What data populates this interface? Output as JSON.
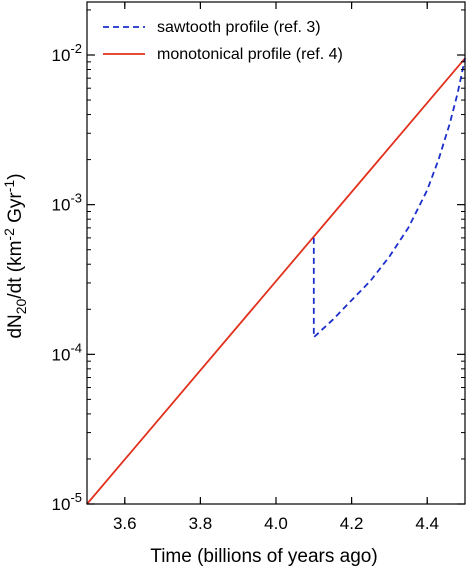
{
  "chart_data": {
    "type": "line",
    "title": "",
    "xlabel": "Time (billions of years ago)",
    "ylabel_parts": {
      "main": "dN",
      "sub": "20",
      "after_sub": "/dt (km",
      "sup1": "-2",
      "mid": " Gyr",
      "sup2": "-1",
      "end": ")"
    },
    "xlim": [
      3.5,
      4.5
    ],
    "ylim": [
      1e-05,
      0.01
    ],
    "yscale": "log",
    "grid": false,
    "legend_position": "top-left",
    "x_ticks": [
      {
        "value": 3.6,
        "label": "3.6"
      },
      {
        "value": 3.8,
        "label": "3.8"
      },
      {
        "value": 4.0,
        "label": "4.0"
      },
      {
        "value": 4.2,
        "label": "4.2"
      },
      {
        "value": 4.4,
        "label": "4.4"
      }
    ],
    "y_ticks": [
      {
        "value": 1e-05,
        "base": "10",
        "exp": "-5"
      },
      {
        "value": 0.0001,
        "base": "10",
        "exp": "-4"
      },
      {
        "value": 0.001,
        "base": "10",
        "exp": "-3"
      },
      {
        "value": 0.01,
        "base": "10",
        "exp": "-2"
      }
    ],
    "series": [
      {
        "name": "sawtooth profile (ref. 3)",
        "color": "#1a2ecc",
        "style": "dashed",
        "points": [
          [
            4.1,
            0.0006
          ],
          [
            4.1,
            0.00013
          ],
          [
            4.15,
            0.00017
          ],
          [
            4.2,
            0.00023
          ],
          [
            4.25,
            0.00031
          ],
          [
            4.3,
            0.00045
          ],
          [
            4.35,
            0.0007
          ],
          [
            4.4,
            0.00125
          ],
          [
            4.43,
            0.002
          ],
          [
            4.46,
            0.0035
          ],
          [
            4.48,
            0.0055
          ],
          [
            4.49,
            0.0072
          ],
          [
            4.5,
            0.0095
          ]
        ]
      },
      {
        "name": "monotonical profile (ref. 4)",
        "color": "#e2311d",
        "style": "solid",
        "points": [
          [
            3.5,
            1e-05
          ],
          [
            4.5,
            0.0095
          ]
        ]
      }
    ]
  }
}
